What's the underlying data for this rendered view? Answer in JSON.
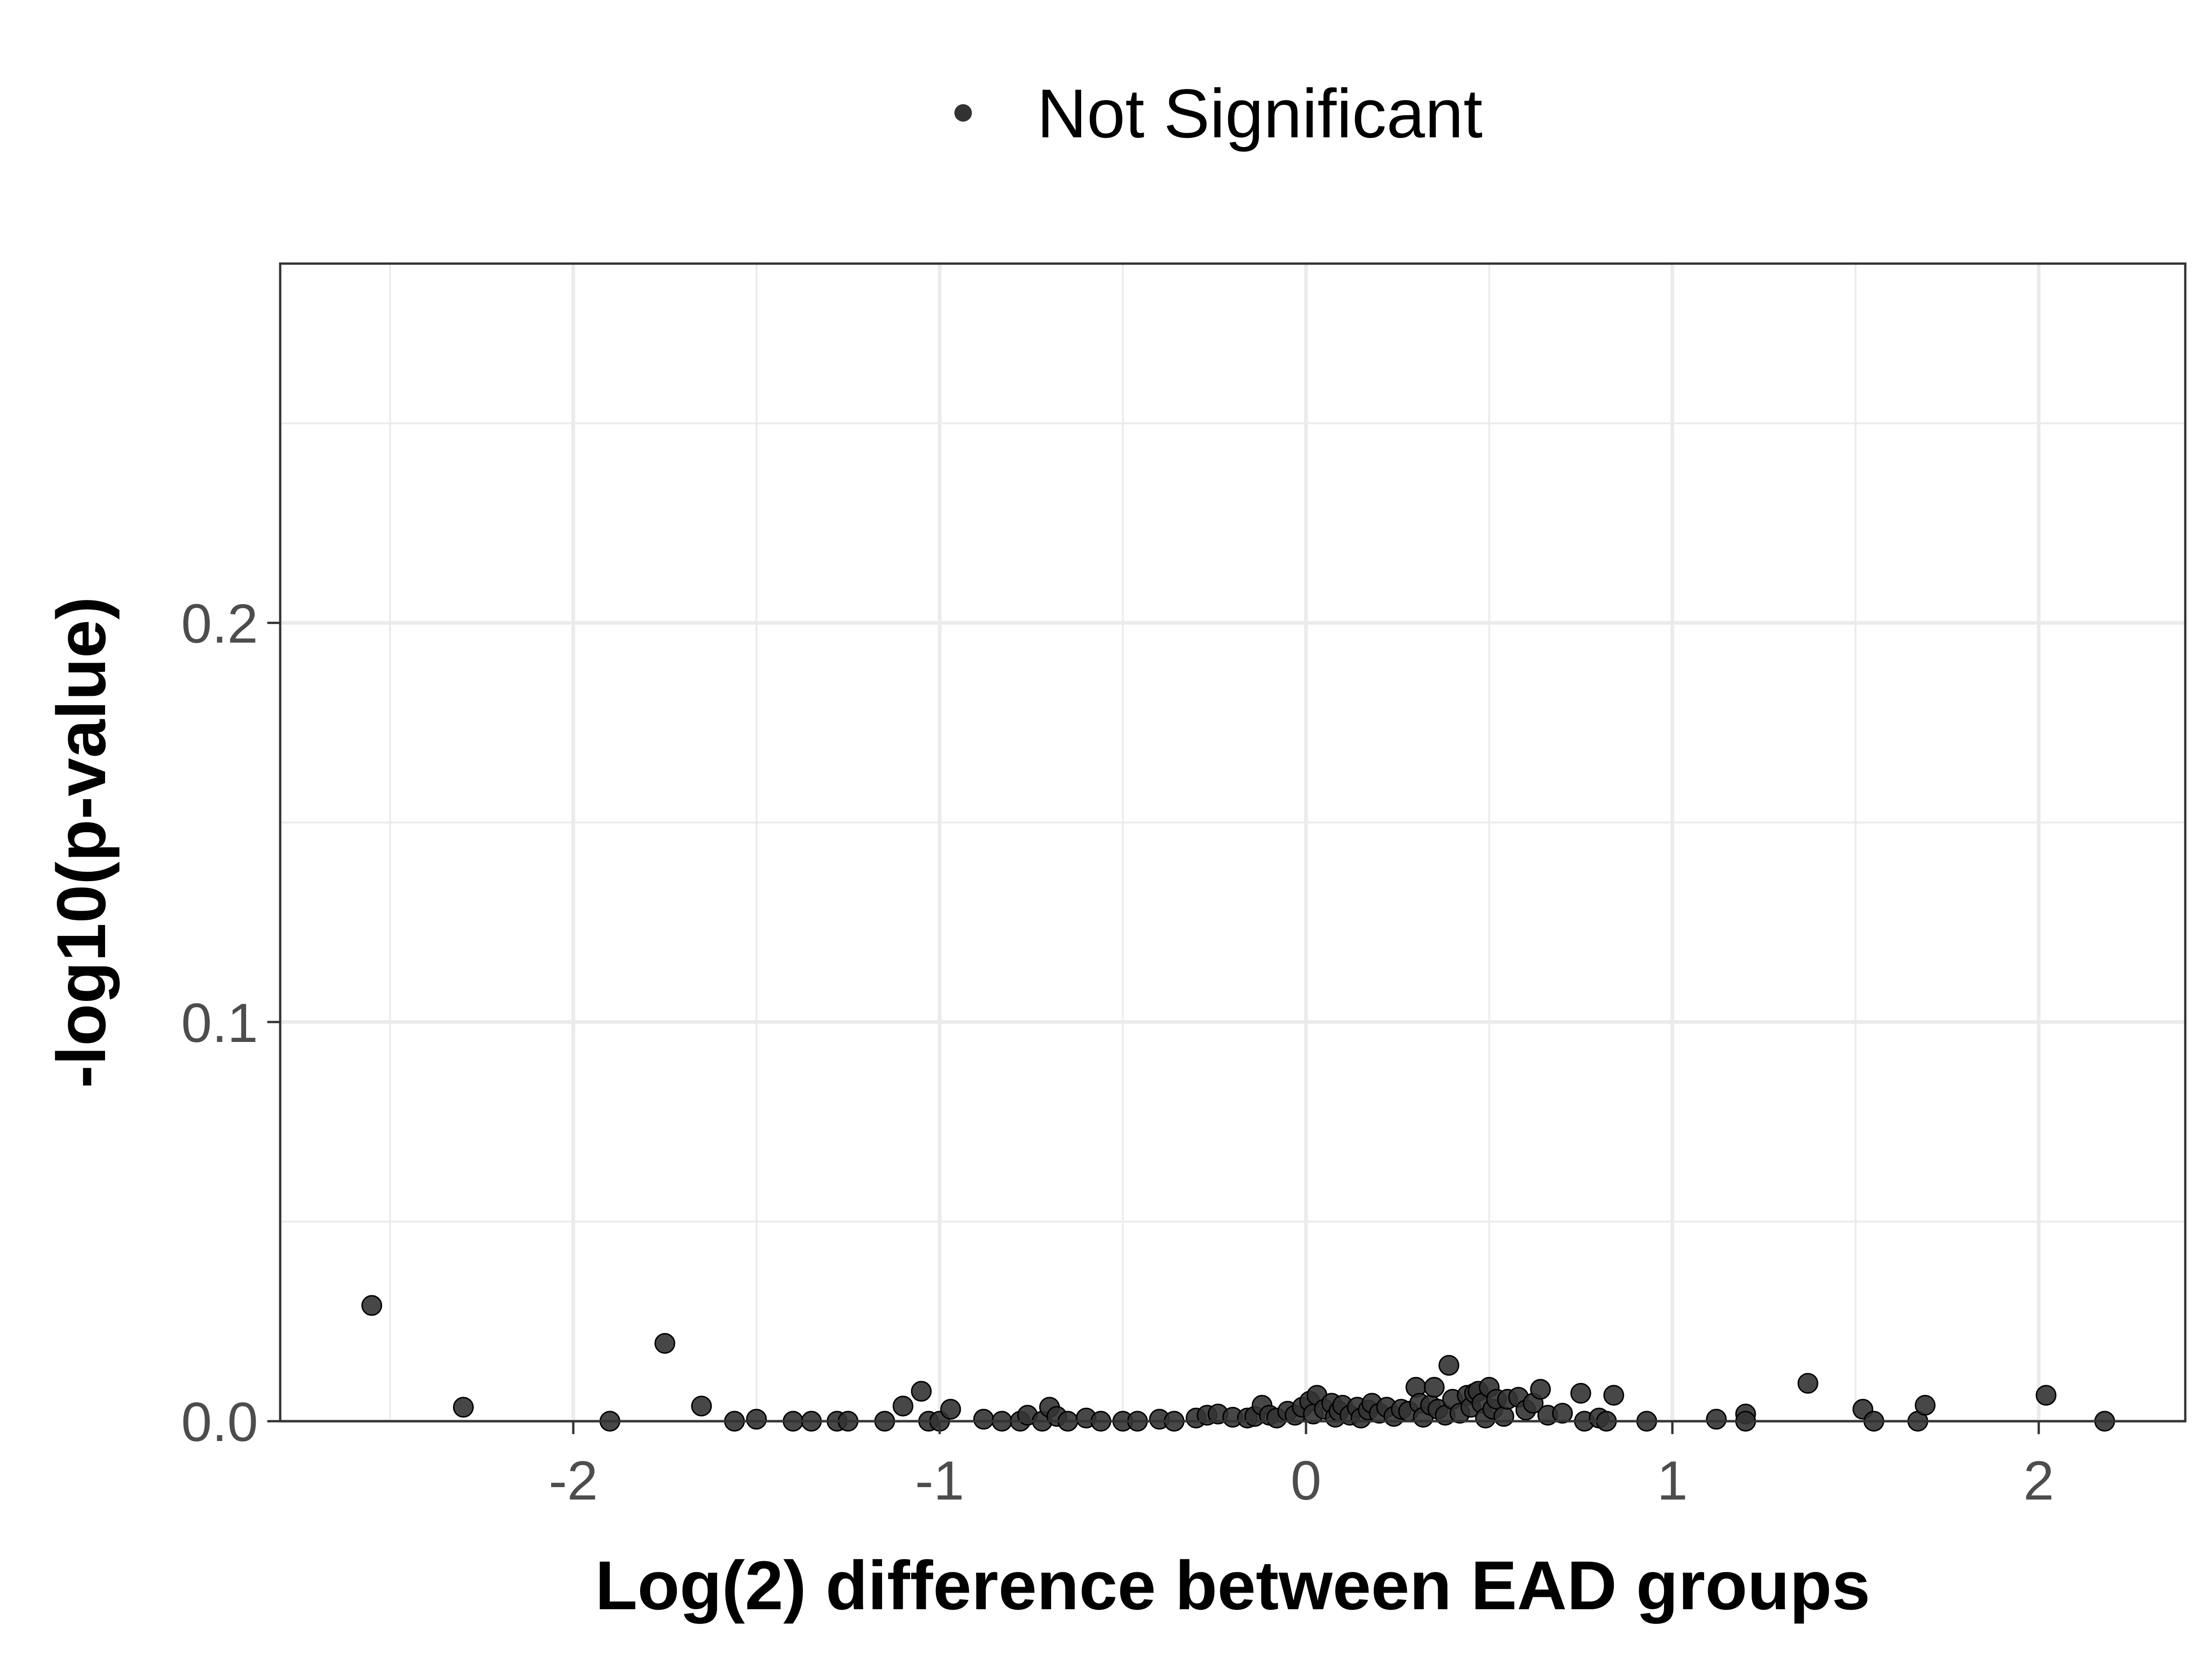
{
  "chart_data": {
    "type": "scatter",
    "xlabel": "Log(2) difference between EAD groups",
    "ylabel": "-log10(p-value)",
    "xlim": [
      -2.8,
      2.4
    ],
    "ylim": [
      0,
      0.29
    ],
    "x_ticks": [
      -2,
      -1,
      0,
      1,
      2
    ],
    "x_tick_labels": [
      "-2",
      "-1",
      "0",
      "1",
      "2"
    ],
    "y_ticks": [
      0.0,
      0.1,
      0.2
    ],
    "y_tick_labels": [
      "0.0",
      "0.1",
      "0.2"
    ],
    "grid": true,
    "legend_position": "top",
    "series": [
      {
        "name": "Not Significant",
        "color": "#333333",
        "points": [
          [
            -2.55,
            0.029
          ],
          [
            -2.3,
            0.0035
          ],
          [
            -1.9,
            0.0
          ],
          [
            -1.75,
            0.0195
          ],
          [
            -1.65,
            0.0038
          ],
          [
            -1.56,
            0.0
          ],
          [
            -1.5,
            0.0005
          ],
          [
            -1.4,
            0.0
          ],
          [
            -1.35,
            0.0
          ],
          [
            -1.28,
            0.0
          ],
          [
            -1.25,
            0.0
          ],
          [
            -1.15,
            0.0
          ],
          [
            -1.1,
            0.0038
          ],
          [
            -1.05,
            0.0075
          ],
          [
            -1.03,
            0.0
          ],
          [
            -1.0,
            0.0
          ],
          [
            -0.97,
            0.003
          ],
          [
            -0.88,
            0.0005
          ],
          [
            -0.83,
            0.0
          ],
          [
            -0.78,
            0.0
          ],
          [
            -0.76,
            0.0015
          ],
          [
            -0.72,
            0.0
          ],
          [
            -0.7,
            0.0035
          ],
          [
            -0.68,
            0.0012
          ],
          [
            -0.65,
            0.0
          ],
          [
            -0.6,
            0.0008
          ],
          [
            -0.56,
            0.0
          ],
          [
            -0.5,
            0.0
          ],
          [
            -0.46,
            0.0
          ],
          [
            -0.4,
            0.0005
          ],
          [
            -0.36,
            0.0
          ],
          [
            -0.3,
            0.0008
          ],
          [
            -0.27,
            0.0015
          ],
          [
            -0.24,
            0.0018
          ],
          [
            -0.2,
            0.001
          ],
          [
            -0.16,
            0.0008
          ],
          [
            -0.14,
            0.0012
          ],
          [
            -0.12,
            0.004
          ],
          [
            -0.1,
            0.0015
          ],
          [
            -0.08,
            0.0008
          ],
          [
            -0.05,
            0.0025
          ],
          [
            -0.03,
            0.0015
          ],
          [
            -0.01,
            0.0035
          ],
          [
            0.01,
            0.005
          ],
          [
            0.02,
            0.0018
          ],
          [
            0.03,
            0.0065
          ],
          [
            0.05,
            0.003
          ],
          [
            0.07,
            0.0045
          ],
          [
            0.08,
            0.001
          ],
          [
            0.09,
            0.0025
          ],
          [
            0.1,
            0.004
          ],
          [
            0.12,
            0.0015
          ],
          [
            0.14,
            0.0035
          ],
          [
            0.15,
            0.0008
          ],
          [
            0.17,
            0.0028
          ],
          [
            0.18,
            0.0045
          ],
          [
            0.2,
            0.002
          ],
          [
            0.22,
            0.0035
          ],
          [
            0.24,
            0.0012
          ],
          [
            0.26,
            0.003
          ],
          [
            0.28,
            0.0025
          ],
          [
            0.3,
            0.0085
          ],
          [
            0.31,
            0.0045
          ],
          [
            0.32,
            0.001
          ],
          [
            0.34,
            0.004
          ],
          [
            0.35,
            0.0085
          ],
          [
            0.36,
            0.003
          ],
          [
            0.38,
            0.0015
          ],
          [
            0.39,
            0.014
          ],
          [
            0.4,
            0.0055
          ],
          [
            0.42,
            0.002
          ],
          [
            0.44,
            0.0065
          ],
          [
            0.45,
            0.0035
          ],
          [
            0.46,
            0.007
          ],
          [
            0.47,
            0.0075
          ],
          [
            0.48,
            0.0045
          ],
          [
            0.49,
            0.0008
          ],
          [
            0.5,
            0.0085
          ],
          [
            0.51,
            0.003
          ],
          [
            0.52,
            0.0055
          ],
          [
            0.54,
            0.0012
          ],
          [
            0.55,
            0.0055
          ],
          [
            0.58,
            0.006
          ],
          [
            0.6,
            0.0028
          ],
          [
            0.62,
            0.0045
          ],
          [
            0.64,
            0.008
          ],
          [
            0.66,
            0.0015
          ],
          [
            0.7,
            0.002
          ],
          [
            0.75,
            0.007
          ],
          [
            0.76,
            0.0
          ],
          [
            0.8,
            0.0008
          ],
          [
            0.82,
            0.0
          ],
          [
            0.84,
            0.0065
          ],
          [
            0.93,
            0.0
          ],
          [
            1.12,
            0.0005
          ],
          [
            1.2,
            0.0018
          ],
          [
            1.2,
            0.0
          ],
          [
            1.37,
            0.0095
          ],
          [
            1.52,
            0.003
          ],
          [
            1.55,
            0.0
          ],
          [
            1.67,
            0.0
          ],
          [
            1.69,
            0.004
          ],
          [
            2.02,
            0.0065
          ],
          [
            2.18,
            0.0
          ]
        ]
      }
    ]
  }
}
